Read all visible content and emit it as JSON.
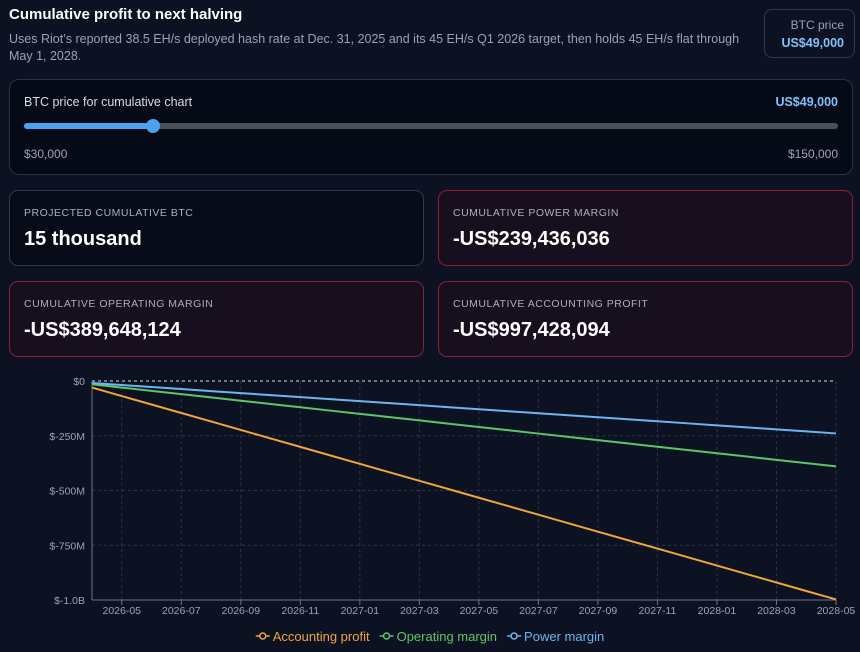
{
  "header": {
    "title": "Cumulative profit to next halving",
    "subtitle": "Uses Riot’s reported 38.5 EH/s deployed hash rate at Dec. 31, 2025 and its 45 EH/s Q1 2026 target, then holds 45 EH/s flat through May 1, 2028."
  },
  "price_badge": {
    "label": "BTC price",
    "value": "US$49,000"
  },
  "slider": {
    "label": "BTC price for cumulative chart",
    "value": {
      "value": 49000,
      "label": "US$49,000"
    },
    "min": {
      "value": 30000,
      "label": "$30,000"
    },
    "max": {
      "value": 150000,
      "label": "$150,000"
    }
  },
  "cards": [
    {
      "label": "PROJECTED CUMULATIVE BTC",
      "value": "15 thousand",
      "alert": false
    },
    {
      "label": "CUMULATIVE POWER MARGIN",
      "value": "-US$239,436,036",
      "alert": true
    },
    {
      "label": "CUMULATIVE OPERATING MARGIN",
      "value": "-US$389,648,124",
      "alert": true
    },
    {
      "label": "CUMULATIVE ACCOUNTING PROFIT",
      "value": "-US$997,428,094",
      "alert": true
    }
  ],
  "chart_data": {
    "type": "line",
    "x": [
      "2026-04",
      "2026-05",
      "2026-06",
      "2026-07",
      "2026-08",
      "2026-09",
      "2026-10",
      "2026-11",
      "2026-12",
      "2027-01",
      "2027-02",
      "2027-03",
      "2027-04",
      "2027-05",
      "2027-06",
      "2027-07",
      "2027-08",
      "2027-09",
      "2027-10",
      "2027-11",
      "2027-12",
      "2028-01",
      "2028-02",
      "2028-03",
      "2028-04",
      "2028-05"
    ],
    "xlim": [
      "2026-04",
      "2028-05"
    ],
    "xticks": [
      "2026-05",
      "2026-07",
      "2026-09",
      "2026-11",
      "2027-01",
      "2027-03",
      "2027-05",
      "2027-07",
      "2027-09",
      "2027-11",
      "2028-01",
      "2028-03",
      "2028-05"
    ],
    "ylim": [
      -1000000000,
      0
    ],
    "yticks": [
      {
        "value": 0,
        "label": "$0"
      },
      {
        "value": -250000000,
        "label": "$-250M"
      },
      {
        "value": -500000000,
        "label": "$-500M"
      },
      {
        "value": -750000000,
        "label": "$-750M"
      },
      {
        "value": -1000000000,
        "label": "$-1.0B"
      }
    ],
    "grid": true,
    "series": [
      {
        "name": "Accounting profit",
        "color": "#f0a43a",
        "values": [
          -30000000,
          -68700000,
          -107400000,
          -146100000,
          -184800000,
          -223500000,
          -262200000,
          -300900000,
          -339600000,
          -378300000,
          -417000000,
          -455700000,
          -494400000,
          -533100000,
          -571800000,
          -610500000,
          -649200000,
          -687900000,
          -726600000,
          -765300000,
          -804000000,
          -842700000,
          -881400000,
          -920100000,
          -958800000,
          -997428094
        ]
      },
      {
        "name": "Operating margin",
        "color": "#5bc56a",
        "values": [
          -15000000,
          -30000000,
          -45000000,
          -60000000,
          -75000000,
          -90000000,
          -105000000,
          -120000000,
          -135000000,
          -150000000,
          -165000000,
          -180000000,
          -195000000,
          -210000000,
          -225000000,
          -240000000,
          -255000000,
          -270000000,
          -285000000,
          -300000000,
          -315000000,
          -330000000,
          -345000000,
          -360000000,
          -375000000,
          -389648124
        ]
      },
      {
        "name": "Power margin",
        "color": "#6cb6f0",
        "values": [
          -9200000,
          -18400000,
          -27600000,
          -36800000,
          -46000000,
          -55200000,
          -64400000,
          -73600000,
          -82800000,
          -92000000,
          -101200000,
          -110400000,
          -119600000,
          -128800000,
          -138000000,
          -147200000,
          -156400000,
          -165600000,
          -174800000,
          -184000000,
          -193200000,
          -202400000,
          -211600000,
          -220800000,
          -230000000,
          -239436036
        ]
      }
    ]
  }
}
